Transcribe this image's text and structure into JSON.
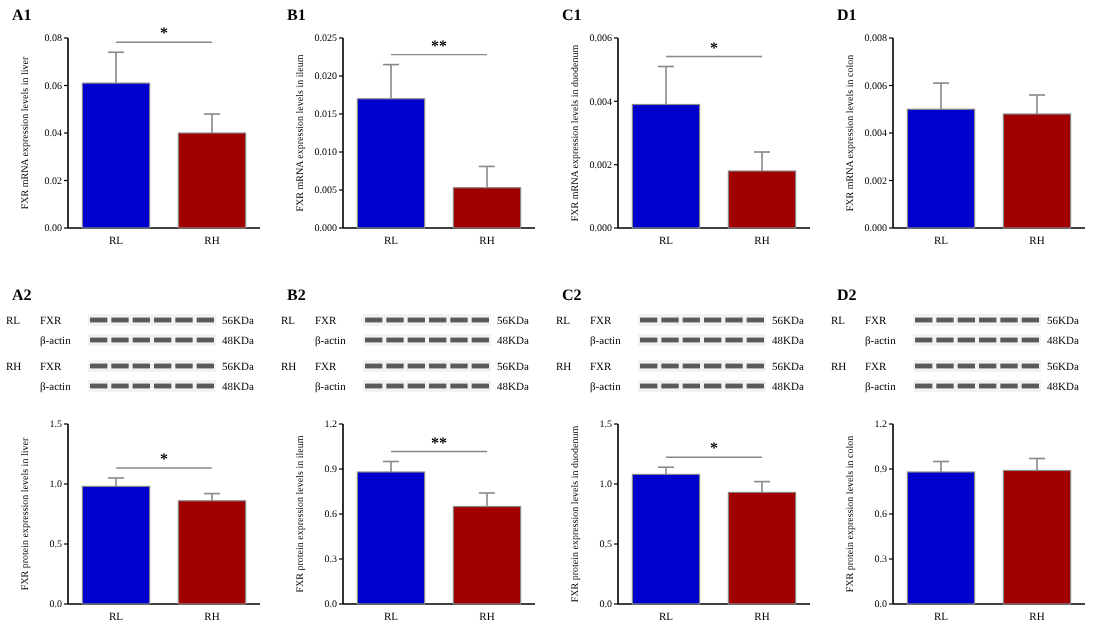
{
  "chart_data": [
    {
      "type": "bar",
      "title": "A1",
      "ylabel": "FXR mRNA expression levels in liver",
      "categories": [
        "RL",
        "RH"
      ],
      "values": [
        0.061,
        0.04
      ],
      "errors": [
        0.013,
        0.008
      ],
      "colors": [
        "#0000cc",
        "#a00000"
      ],
      "ylim": [
        0,
        0.08
      ],
      "yticks": [
        {
          "value": 0,
          "label": "0.00"
        },
        {
          "value": 0.02,
          "label": "0.02"
        },
        {
          "value": 0.04,
          "label": "0.04"
        },
        {
          "value": 0.06,
          "label": "0.06"
        },
        {
          "value": 0.08,
          "label": "0.08"
        }
      ],
      "annotations": [
        "*"
      ]
    },
    {
      "type": "bar",
      "title": "B1",
      "ylabel": "FXR mRNA expression levels in ileum",
      "categories": [
        "RL",
        "RH"
      ],
      "values": [
        0.017,
        0.0053
      ],
      "errors": [
        0.0045,
        0.0028
      ],
      "colors": [
        "#0000cc",
        "#a00000"
      ],
      "ylim": [
        0,
        0.025
      ],
      "yticks": [
        {
          "value": 0,
          "label": "0.000"
        },
        {
          "value": 0.005,
          "label": "0.005"
        },
        {
          "value": 0.01,
          "label": "0.010"
        },
        {
          "value": 0.015,
          "label": "0.015"
        },
        {
          "value": 0.02,
          "label": "0.020"
        },
        {
          "value": 0.025,
          "label": "0.025"
        }
      ],
      "annotations": [
        "**"
      ]
    },
    {
      "type": "bar",
      "title": "C1",
      "ylabel": "FXR mRNA expression levels in duodenum",
      "categories": [
        "RL",
        "RH"
      ],
      "values": [
        0.0039,
        0.0018
      ],
      "errors": [
        0.0012,
        0.0006
      ],
      "colors": [
        "#0000cc",
        "#a00000"
      ],
      "ylim": [
        0,
        0.006
      ],
      "yticks": [
        {
          "value": 0,
          "label": "0.000"
        },
        {
          "value": 0.002,
          "label": "0.002"
        },
        {
          "value": 0.004,
          "label": "0.004"
        },
        {
          "value": 0.006,
          "label": "0.006"
        }
      ],
      "annotations": [
        "*"
      ]
    },
    {
      "type": "bar",
      "title": "D1",
      "ylabel": "FXR mRNA expression levels in colon",
      "categories": [
        "RL",
        "RH"
      ],
      "values": [
        0.005,
        0.0048
      ],
      "errors": [
        0.0011,
        0.0008
      ],
      "colors": [
        "#0000cc",
        "#a00000"
      ],
      "ylim": [
        0,
        0.008
      ],
      "yticks": [
        {
          "value": 0,
          "label": "0.000"
        },
        {
          "value": 0.002,
          "label": "0.002"
        },
        {
          "value": 0.004,
          "label": "0.004"
        },
        {
          "value": 0.006,
          "label": "0.006"
        },
        {
          "value": 0.008,
          "label": "0.008"
        }
      ]
    },
    {
      "type": "bar",
      "title": "A2",
      "ylabel": "FXR protein expression levels in liver",
      "categories": [
        "RL",
        "RH"
      ],
      "values": [
        0.98,
        0.86
      ],
      "errors": [
        0.07,
        0.06
      ],
      "colors": [
        "#0000cc",
        "#a00000"
      ],
      "ylim": [
        0,
        1.5
      ],
      "yticks": [
        {
          "value": 0,
          "label": "0.0"
        },
        {
          "value": 0.5,
          "label": "0.5"
        },
        {
          "value": 1,
          "label": "1.0"
        },
        {
          "value": 1.5,
          "label": "1.5"
        }
      ],
      "annotations": [
        "RL",
        "FXR",
        "56KDa",
        "β-actin",
        "48KDa",
        "RH",
        "FXR",
        "56KDa",
        "β-actin",
        "48KDa",
        "*"
      ]
    },
    {
      "type": "bar",
      "title": "B2",
      "ylabel": "FXR protein expression levels in ileum",
      "categories": [
        "RL",
        "RH"
      ],
      "values": [
        0.88,
        0.65
      ],
      "errors": [
        0.07,
        0.09
      ],
      "colors": [
        "#0000cc",
        "#a00000"
      ],
      "ylim": [
        0,
        1.2
      ],
      "yticks": [
        {
          "value": 0,
          "label": "0.0"
        },
        {
          "value": 0.3,
          "label": "0.3"
        },
        {
          "value": 0.6,
          "label": "0.6"
        },
        {
          "value": 0.9,
          "label": "0.9"
        },
        {
          "value": 1.2,
          "label": "1.2"
        }
      ],
      "annotations": [
        "RL",
        "FXR",
        "56KDa",
        "β-actin",
        "48KDa",
        "RH",
        "FXR",
        "56KDa",
        "β-actin",
        "48KDa",
        "**"
      ]
    },
    {
      "type": "bar",
      "title": "C2",
      "ylabel": "FXR protein expression levels in duodenum",
      "categories": [
        "RL",
        "RH"
      ],
      "values": [
        1.08,
        0.93
      ],
      "errors": [
        0.06,
        0.09
      ],
      "colors": [
        "#0000cc",
        "#a00000"
      ],
      "ylim": [
        0,
        1.5
      ],
      "yticks": [
        {
          "value": 0,
          "label": "0.0"
        },
        {
          "value": 0.5,
          "label": "0.5"
        },
        {
          "value": 1,
          "label": "1.0"
        },
        {
          "value": 1.5,
          "label": "1.5"
        }
      ],
      "annotations": [
        "RL",
        "FXR",
        "56KDa",
        "β-actin",
        "48KDa",
        "RH",
        "FXR",
        "56KDa",
        "β-actin",
        "48KDa",
        "*"
      ]
    },
    {
      "type": "bar",
      "title": "D2",
      "ylabel": "FXR protein expression levels in colon",
      "categories": [
        "RL",
        "RH"
      ],
      "values": [
        0.88,
        0.89
      ],
      "errors": [
        0.07,
        0.08
      ],
      "colors": [
        "#0000cc",
        "#a00000"
      ],
      "ylim": [
        0,
        1.2
      ],
      "yticks": [
        {
          "value": 0,
          "label": "0.0"
        },
        {
          "value": 0.3,
          "label": "0.3"
        },
        {
          "value": 0.6,
          "label": "0.6"
        },
        {
          "value": 0.9,
          "label": "0.9"
        },
        {
          "value": 1.2,
          "label": "1.2"
        }
      ],
      "annotations": [
        "RL",
        "FXR",
        "56KDa",
        "β-actin",
        "48KDa",
        "RH",
        "FXR",
        "56KDa",
        "β-actin",
        "48KDa"
      ]
    }
  ]
}
